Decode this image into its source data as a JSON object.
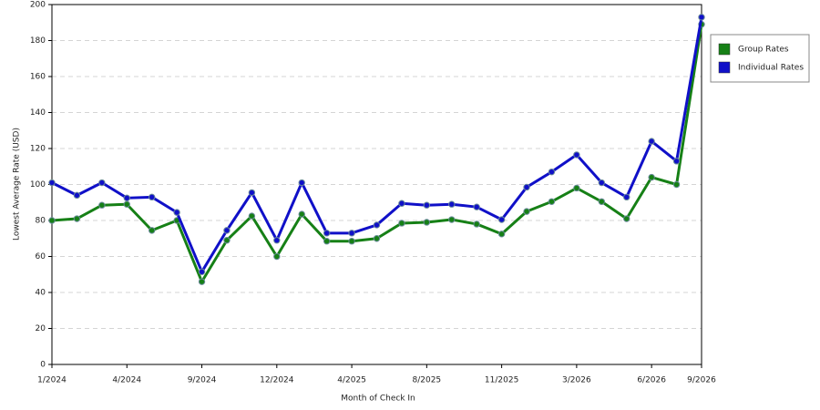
{
  "chart_data": {
    "type": "line",
    "x_label": "Month of Check In",
    "y_label": "Lowest Average Rate (USD)",
    "categories": [
      "1/2024",
      null,
      null,
      "4/2024",
      null,
      null,
      "9/2024",
      null,
      null,
      "12/2024",
      null,
      null,
      "4/2025",
      null,
      null,
      "8/2025",
      null,
      null,
      "11/2025",
      null,
      null,
      "3/2026",
      null,
      null,
      "6/2026",
      null,
      "9/2026"
    ],
    "series": [
      {
        "name": "Group Rates",
        "color": "#168016",
        "values": [
          80,
          81,
          88.5,
          89,
          74.5,
          80,
          46,
          69,
          82.5,
          60,
          83.5,
          68.5,
          68.5,
          70,
          78.5,
          79,
          80.5,
          78,
          72.5,
          85,
          90.5,
          98,
          90.5,
          81,
          104,
          100,
          189
        ]
      },
      {
        "name": "Individual Rates",
        "color": "#1010c8",
        "values": [
          101,
          94,
          101,
          92.5,
          93,
          84.5,
          51.5,
          74.5,
          95.5,
          69,
          101,
          73,
          73,
          77.5,
          89.5,
          88.5,
          89,
          87.5,
          80.5,
          98.5,
          107,
          116.5,
          101,
          93,
          124,
          113,
          193
        ]
      }
    ],
    "ylim": [
      0,
      200
    ],
    "yticks": [
      0,
      20,
      40,
      60,
      80,
      100,
      120,
      140,
      160,
      180,
      200
    ],
    "grid": true,
    "legend": "right"
  }
}
